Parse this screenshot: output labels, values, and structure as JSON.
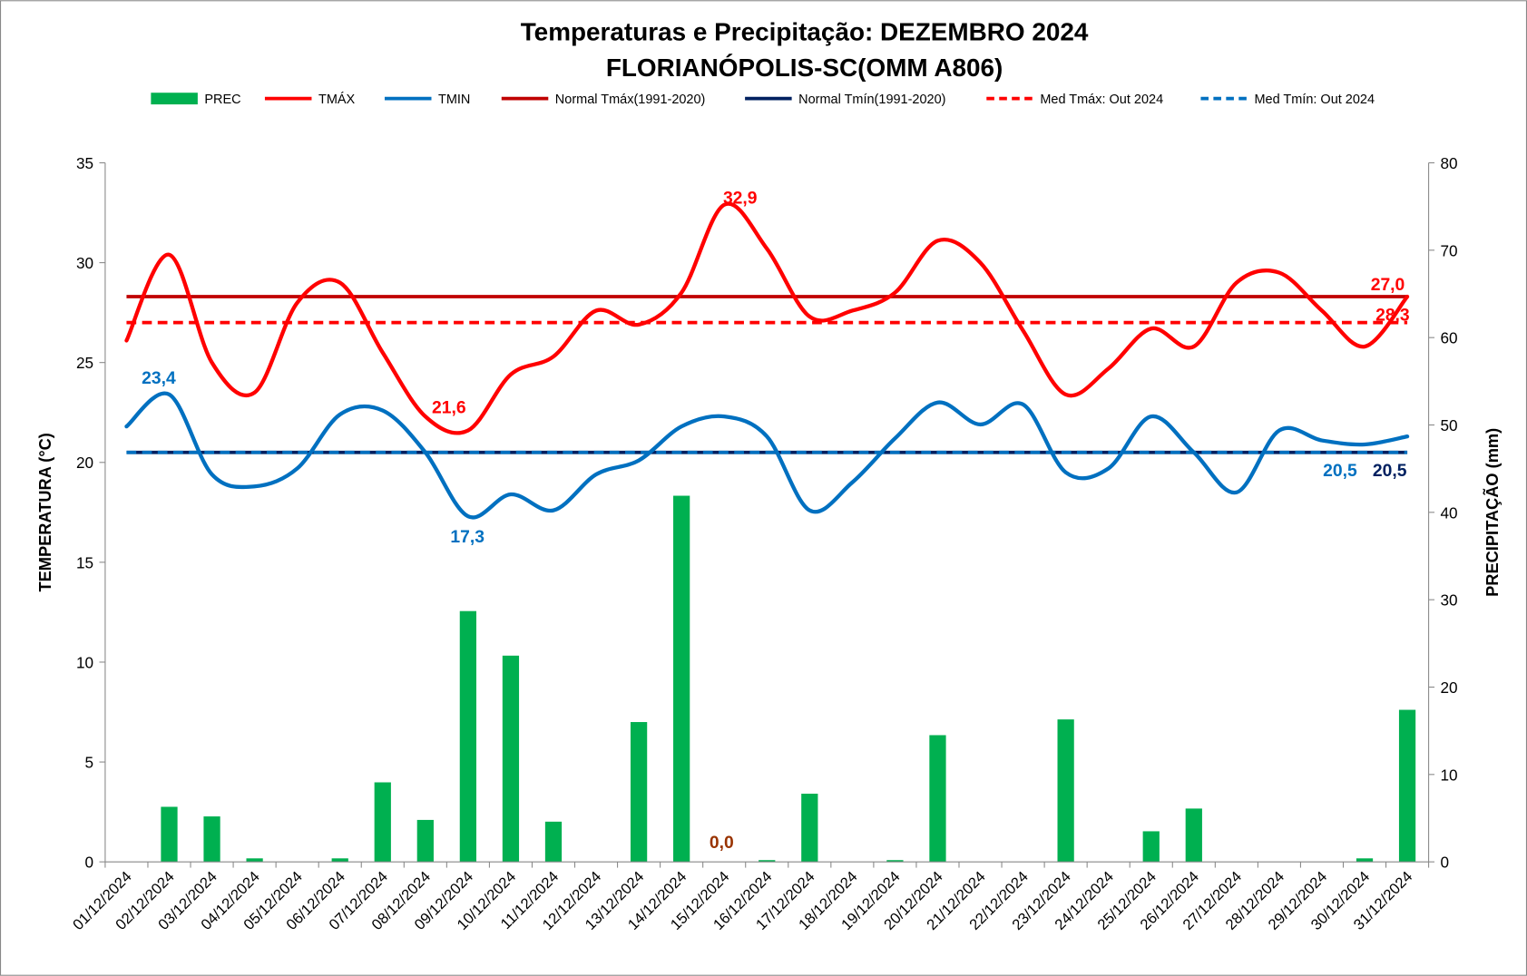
{
  "chart_data": {
    "type": "bar+line",
    "title": "Temperaturas e Precipitação: DEZEMBRO 2024",
    "subtitle": "FLORIANÓPOLIS-SC(OMM  A806)",
    "ylabel": "TEMPERATURA  (°C)",
    "y2label": "PRECIPITAÇÃO  (mm)",
    "ylim": [
      0,
      35
    ],
    "y2lim": [
      0,
      80
    ],
    "yticks": [
      "0",
      "5",
      "10",
      "15",
      "20",
      "25",
      "30",
      "35"
    ],
    "y2ticks": [
      "0",
      "10",
      "20",
      "30",
      "40",
      "50",
      "60",
      "70",
      "80"
    ],
    "legend_position": "top",
    "categories": [
      "01/12/2024",
      "02/12/2024",
      "03/12/2024",
      "04/12/2024",
      "05/12/2024",
      "06/12/2024",
      "07/12/2024",
      "08/12/2024",
      "09/12/2024",
      "10/12/2024",
      "11/12/2024",
      "12/12/2024",
      "13/12/2024",
      "14/12/2024",
      "15/12/2024",
      "16/12/2024",
      "17/12/2024",
      "18/12/2024",
      "19/12/2024",
      "20/12/2024",
      "21/12/2024",
      "22/12/2024",
      "23/12/2024",
      "24/12/2024",
      "25/12/2024",
      "26/12/2024",
      "27/12/2024",
      "28/12/2024",
      "29/12/2024",
      "30/12/2024",
      "31/12/2024"
    ],
    "series": [
      {
        "name": "PREC",
        "kind": "bar",
        "axis": "right",
        "color": "#00B050",
        "values": [
          0,
          6.3,
          5.2,
          0.4,
          0,
          0.4,
          9.1,
          4.8,
          28.7,
          23.6,
          4.6,
          0,
          16.0,
          41.9,
          0,
          0.2,
          7.8,
          0,
          0.2,
          14.5,
          0,
          0,
          16.3,
          0,
          3.5,
          6.1,
          0,
          0,
          0,
          0.4,
          17.4
        ]
      },
      {
        "name": "TMÁX",
        "kind": "line",
        "color": "#FF0000",
        "values": [
          26.1,
          30.4,
          25.0,
          23.5,
          28.0,
          29.0,
          25.5,
          22.3,
          21.6,
          24.4,
          25.3,
          27.6,
          26.9,
          28.5,
          32.9,
          30.7,
          27.3,
          27.6,
          28.5,
          31.1,
          30.0,
          26.6,
          23.4,
          24.7,
          26.7,
          25.8,
          29.0,
          29.5,
          27.6,
          25.8,
          28.3
        ]
      },
      {
        "name": "TMIN",
        "kind": "line",
        "color": "#0070C0",
        "values": [
          21.8,
          23.4,
          19.4,
          18.8,
          19.7,
          22.4,
          22.6,
          20.5,
          17.3,
          18.4,
          17.6,
          19.4,
          20.1,
          21.8,
          22.3,
          21.3,
          17.6,
          19.0,
          21.2,
          23.0,
          21.9,
          22.9,
          19.5,
          19.7,
          22.3,
          20.5,
          18.5,
          21.6,
          21.1,
          20.9,
          21.3
        ]
      },
      {
        "name": "Normal Tmáx(1991-2020)",
        "kind": "hline",
        "color": "#C00000",
        "value": 28.3
      },
      {
        "name": "Normal Tmín(1991-2020)",
        "kind": "hline",
        "color": "#002060",
        "value": 20.5
      },
      {
        "name": "Med Tmáx: Out 2024",
        "kind": "hline-dashed",
        "color": "#FF0000",
        "value": 27.0
      },
      {
        "name": "Med Tmín: Out 2024",
        "kind": "hline-dashed",
        "color": "#0070C0",
        "value": 20.5
      }
    ],
    "annotations": [
      {
        "text": "23,4",
        "color": "#0070C0"
      },
      {
        "text": "21,6",
        "color": "#FF0000"
      },
      {
        "text": "17,3",
        "color": "#0070C0"
      },
      {
        "text": "32,9",
        "color": "#FF0000"
      },
      {
        "text": "0,0",
        "color": "#993300"
      },
      {
        "text": "27,0",
        "color": "#FF0000"
      },
      {
        "text": "28,3",
        "color": "#FF0000"
      },
      {
        "text": "20,5",
        "color": "#0070C0"
      },
      {
        "text": "20,5",
        "color": "#002060"
      }
    ]
  }
}
